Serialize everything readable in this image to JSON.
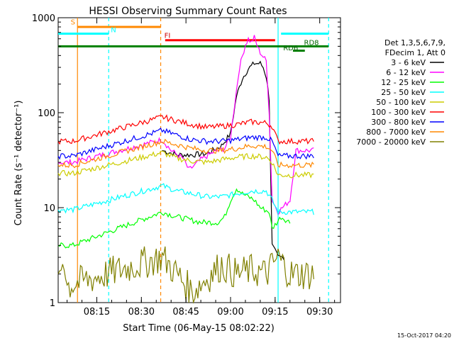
{
  "chart_data": {
    "type": "line",
    "title": "HESSI Observing Summary Count Rates",
    "xlabel": "Start Time (06-May-15 08:02:22)",
    "ylabel": "Count Rate (s⁻¹ detector⁻¹)",
    "yscale": "log",
    "ylim": [
      1,
      1000
    ],
    "xlim_minutes": [
      0,
      95
    ],
    "x_ticks": [
      {
        "t": 13,
        "label": "08:15"
      },
      {
        "t": 28,
        "label": "08:30"
      },
      {
        "t": 43,
        "label": "08:45"
      },
      {
        "t": 58,
        "label": "09:00"
      },
      {
        "t": 73,
        "label": "09:15"
      },
      {
        "t": 88,
        "label": "09:30"
      }
    ],
    "y_ticks": [
      {
        "v": 1,
        "label": "1"
      },
      {
        "v": 10,
        "label": "10"
      },
      {
        "v": 100,
        "label": "100"
      },
      {
        "v": 1000,
        "label": "1000"
      }
    ],
    "legend_title": [
      "Det 1,3,5,6,7,9,",
      "FDecim 1, Att 0"
    ],
    "legend_placement": "right",
    "series": [
      {
        "name": "3 - 6 keV",
        "color": "#000000",
        "points": [
          [
            35,
            40
          ],
          [
            40,
            36
          ],
          [
            45,
            36
          ],
          [
            50,
            37
          ],
          [
            55,
            45
          ],
          [
            58,
            60
          ],
          [
            60,
            150
          ],
          [
            62,
            230
          ],
          [
            64,
            290
          ],
          [
            66,
            330
          ],
          [
            68,
            330
          ],
          [
            69,
            300
          ],
          [
            70,
            240
          ],
          [
            71,
            140
          ],
          [
            72,
            4
          ],
          [
            74,
            3
          ],
          [
            76,
            3
          ]
        ]
      },
      {
        "name": "6 - 12 keV",
        "color": "#ff00ff",
        "points": [
          [
            0,
            30
          ],
          [
            5,
            30
          ],
          [
            35,
            52
          ],
          [
            38,
            40
          ],
          [
            42,
            33
          ],
          [
            44,
            25
          ],
          [
            46,
            28
          ],
          [
            48,
            32
          ],
          [
            52,
            38
          ],
          [
            56,
            42
          ],
          [
            58,
            55
          ],
          [
            59,
            100
          ],
          [
            61,
            300
          ],
          [
            63,
            520
          ],
          [
            64,
            600
          ],
          [
            65,
            550
          ],
          [
            66,
            620
          ],
          [
            67,
            500
          ],
          [
            68,
            430
          ],
          [
            70,
            350
          ],
          [
            71,
            100
          ],
          [
            72,
            12
          ],
          [
            74,
            9
          ],
          [
            78,
            12
          ],
          [
            80,
            40
          ],
          [
            86,
            40
          ]
        ]
      },
      {
        "name": "12 - 25 keV",
        "color": "#00ff00",
        "points": [
          [
            0,
            4
          ],
          [
            5,
            4
          ],
          [
            35,
            9
          ],
          [
            40,
            8
          ],
          [
            48,
            7
          ],
          [
            54,
            7
          ],
          [
            56,
            8
          ],
          [
            58,
            12
          ],
          [
            60,
            16
          ],
          [
            62,
            14
          ],
          [
            64,
            13
          ],
          [
            66,
            12
          ],
          [
            68,
            10
          ],
          [
            71,
            9
          ],
          [
            72,
            6
          ],
          [
            75,
            8
          ],
          [
            78,
            7
          ]
        ]
      },
      {
        "name": "25 - 50 keV",
        "color": "#00ffff",
        "points": [
          [
            0,
            9.5
          ],
          [
            5,
            9.5
          ],
          [
            35,
            17
          ],
          [
            40,
            15
          ],
          [
            45,
            14
          ],
          [
            50,
            13
          ],
          [
            55,
            13
          ],
          [
            60,
            14
          ],
          [
            65,
            15
          ],
          [
            70,
            15
          ],
          [
            72,
            12
          ],
          [
            74,
            9
          ],
          [
            78,
            9
          ],
          [
            86,
            9
          ]
        ]
      },
      {
        "name": "50 - 100 keV",
        "color": "#cccc00",
        "points": [
          [
            0,
            23
          ],
          [
            5,
            23
          ],
          [
            35,
            38
          ],
          [
            40,
            33
          ],
          [
            45,
            31
          ],
          [
            50,
            30
          ],
          [
            55,
            32
          ],
          [
            60,
            34
          ],
          [
            65,
            35
          ],
          [
            70,
            34
          ],
          [
            72,
            30
          ],
          [
            74,
            22
          ],
          [
            78,
            22
          ],
          [
            86,
            22
          ]
        ]
      },
      {
        "name": "100 - 300 keV",
        "color": "#ff0000",
        "points": [
          [
            0,
            50
          ],
          [
            5,
            50
          ],
          [
            35,
            90
          ],
          [
            40,
            82
          ],
          [
            45,
            75
          ],
          [
            50,
            70
          ],
          [
            55,
            72
          ],
          [
            60,
            75
          ],
          [
            65,
            80
          ],
          [
            70,
            78
          ],
          [
            72,
            72
          ],
          [
            74,
            50
          ],
          [
            78,
            50
          ],
          [
            86,
            50
          ]
        ]
      },
      {
        "name": "300 - 800 keV",
        "color": "#0000ff",
        "points": [
          [
            0,
            35
          ],
          [
            5,
            35
          ],
          [
            35,
            65
          ],
          [
            40,
            58
          ],
          [
            45,
            52
          ],
          [
            50,
            50
          ],
          [
            55,
            50
          ],
          [
            60,
            52
          ],
          [
            65,
            55
          ],
          [
            70,
            55
          ],
          [
            72,
            50
          ],
          [
            74,
            35
          ],
          [
            78,
            35
          ],
          [
            86,
            35
          ]
        ]
      },
      {
        "name": "800 - 7000 keV",
        "color": "#ff8800",
        "points": [
          [
            0,
            28
          ],
          [
            5,
            28
          ],
          [
            35,
            50
          ],
          [
            40,
            46
          ],
          [
            45,
            42
          ],
          [
            50,
            40
          ],
          [
            55,
            40
          ],
          [
            60,
            42
          ],
          [
            65,
            45
          ],
          [
            70,
            44
          ],
          [
            72,
            40
          ],
          [
            74,
            28
          ],
          [
            78,
            28
          ],
          [
            86,
            28
          ]
        ]
      },
      {
        "name": "7000 - 20000 keV",
        "color": "#808000",
        "points": [
          [
            0,
            2
          ],
          [
            2,
            3
          ],
          [
            3,
            1.5
          ],
          [
            35,
            3
          ],
          [
            40,
            2
          ],
          [
            45,
            1.3
          ],
          [
            50,
            1.8
          ],
          [
            55,
            2.5
          ],
          [
            60,
            2
          ],
          [
            65,
            2.2
          ],
          [
            70,
            2
          ],
          [
            74,
            3
          ],
          [
            78,
            2
          ],
          [
            86,
            2
          ]
        ]
      }
    ],
    "annotations": [
      {
        "label": "S",
        "color": "#ff8800",
        "x": 3.5
      },
      {
        "label": "N",
        "color": "#00ffff",
        "x": 17
      },
      {
        "label": "FI",
        "color": "#cc0000",
        "x": 35
      },
      {
        "label": "RD6",
        "color": "#006600",
        "x": 75
      },
      {
        "label": "RD8",
        "color": "#006600",
        "x": 82
      }
    ],
    "vertical_lines": [
      {
        "x": 6.5,
        "color": "#ff8800",
        "style": "solid"
      },
      {
        "x": 17,
        "color": "#00ffff",
        "style": "dashed"
      },
      {
        "x": 34.5,
        "color": "#ff8800",
        "style": "dashed"
      },
      {
        "x": 74,
        "color": "#00ffff",
        "style": "solid"
      },
      {
        "x": 91,
        "color": "#00ffff",
        "style": "dashed"
      }
    ],
    "flag_bars": [
      {
        "color": "#ff8800",
        "y": 800,
        "x1": 6.5,
        "x2": 34.5
      },
      {
        "color": "#00ffff",
        "y": 680,
        "x1": 0,
        "x2": 17
      },
      {
        "color": "#00ffff",
        "y": 680,
        "x1": 75,
        "x2": 91
      },
      {
        "color": "#ff0000",
        "y": 580,
        "x1": 36,
        "x2": 73
      },
      {
        "color": "#008000",
        "y": 500,
        "x1": 0,
        "x2": 91
      },
      {
        "color": "#008000",
        "y": 450,
        "x1": 79,
        "x2": 83
      }
    ],
    "footer_text": "15-Oct-2017 04:20"
  }
}
